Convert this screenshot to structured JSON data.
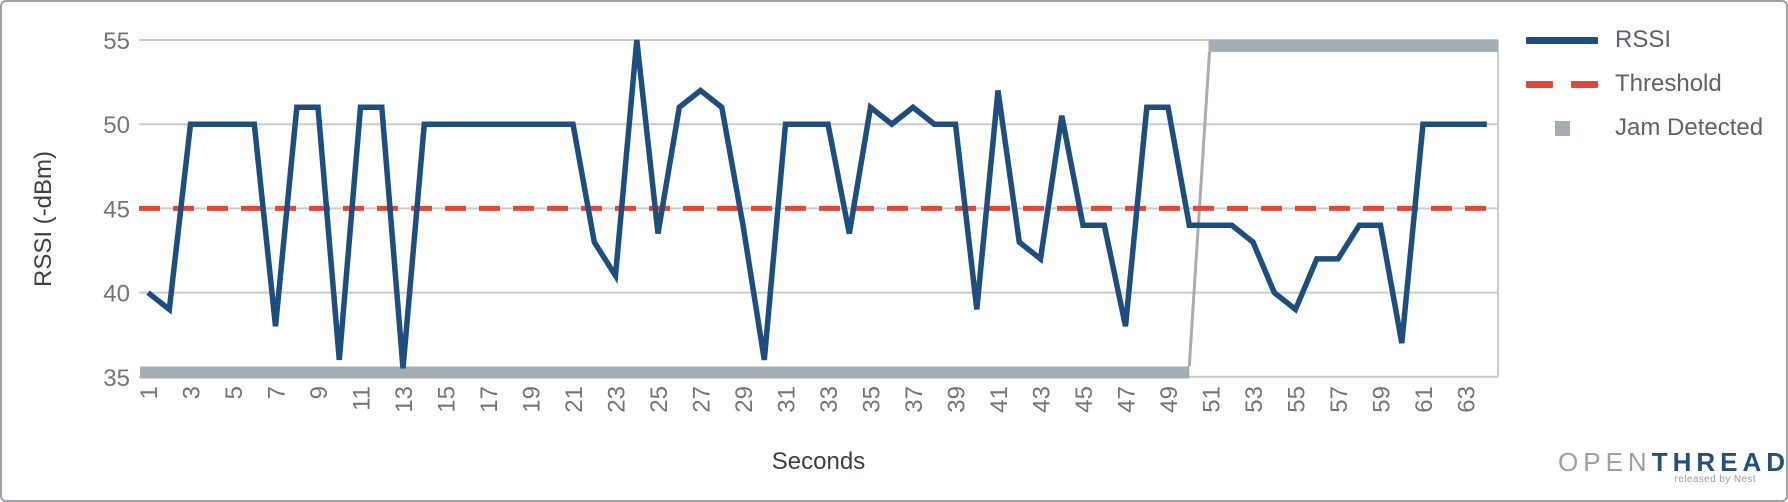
{
  "chart_data": {
    "type": "line",
    "title": "",
    "xlabel": "Seconds",
    "ylabel": "RSSI (-dBm)",
    "ylim": [
      35,
      55
    ],
    "yticks": [
      35,
      40,
      45,
      50,
      55
    ],
    "xticks": [
      1,
      3,
      5,
      7,
      9,
      11,
      13,
      15,
      17,
      19,
      21,
      23,
      25,
      27,
      29,
      31,
      33,
      35,
      37,
      39,
      41,
      43,
      45,
      47,
      49,
      51,
      53,
      55,
      57,
      59,
      61,
      63
    ],
    "grid": "horizontal-only",
    "legend_position": "right",
    "x": [
      1,
      2,
      3,
      4,
      5,
      6,
      7,
      8,
      9,
      10,
      11,
      12,
      13,
      14,
      15,
      16,
      17,
      18,
      19,
      20,
      21,
      22,
      23,
      24,
      25,
      26,
      27,
      28,
      29,
      30,
      31,
      32,
      33,
      34,
      35,
      36,
      37,
      38,
      39,
      40,
      41,
      42,
      43,
      44,
      45,
      46,
      47,
      48,
      49,
      50,
      51,
      52,
      53,
      54,
      55,
      56,
      57,
      58,
      59,
      60,
      61,
      62,
      63,
      64
    ],
    "series": [
      {
        "name": "RSSI",
        "type": "line",
        "color": "#1d4e7d",
        "values": [
          40,
          39,
          50,
          50,
          50,
          50,
          38,
          51,
          51,
          36,
          51,
          51,
          35.5,
          50,
          50,
          50,
          50,
          50,
          50,
          50,
          50,
          43,
          41,
          55,
          43.5,
          51,
          52,
          51,
          44,
          36,
          50,
          50,
          50,
          43.5,
          51,
          50,
          51,
          50,
          50,
          39,
          52,
          43,
          42,
          50.5,
          44,
          44,
          38,
          51,
          51,
          44,
          44,
          44,
          43,
          40,
          39,
          42,
          42,
          44,
          44,
          37,
          50,
          50,
          50,
          50
        ]
      },
      {
        "name": "Threshold",
        "type": "dashed-horizontal-line",
        "color": "#e0493a",
        "value": 45
      },
      {
        "name": "Jam Detected",
        "type": "step",
        "color": "#a4adb2",
        "off_value": 35.25,
        "on_value": 54.65,
        "off_range_x": [
          1,
          50
        ],
        "on_range_x": [
          51,
          64
        ]
      }
    ]
  },
  "axes": {
    "y_title": "RSSI (-dBm)",
    "x_title": "Seconds"
  },
  "legend": {
    "items": [
      {
        "label": "RSSI",
        "swatch": "line"
      },
      {
        "label": "Threshold",
        "swatch": "dashes"
      },
      {
        "label": "Jam Detected",
        "swatch": "square"
      }
    ]
  },
  "logo": {
    "brand_gray": "OPEN",
    "brand_blue": "THREAD",
    "tagline": "released by Nest"
  },
  "colors": {
    "rssi": "#1d4e7d",
    "threshold": "#e0493a",
    "jam": "#a4adb2",
    "grid": "#cccccc",
    "tick_text": "#757575",
    "axis_title_text": "#3c4043",
    "legend_text": "#5f6368",
    "card_border": "#9da1a4",
    "logo_open": "#9aa1a7",
    "logo_thread": "#24507c",
    "logo_tagline": "#979fa4"
  }
}
